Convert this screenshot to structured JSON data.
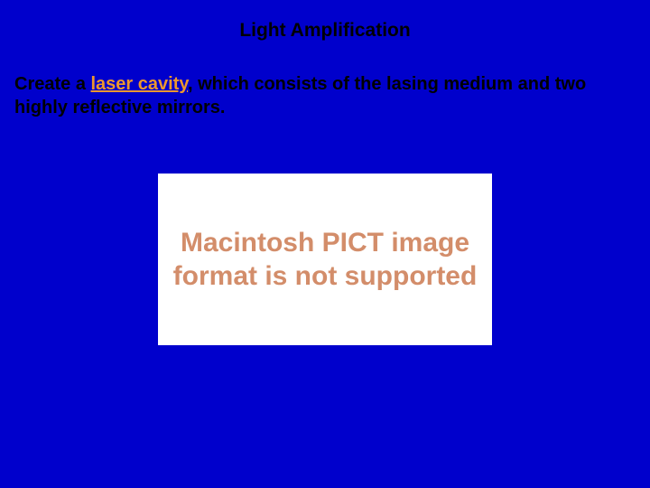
{
  "slide": {
    "background_color": "#0000cc",
    "title": {
      "text": "Light Amplification",
      "color": "#000000"
    },
    "body": {
      "prefix": "Create a ",
      "highlight_text": "laser cavity",
      "highlight_color": "#ec972f",
      "suffix": ", which consists of the lasing medium and two highly reflective mirrors."
    },
    "placeholder": {
      "text": "Macintosh PICT image format is not supported",
      "background_color": "#ffffff",
      "text_color": "#d38d6a"
    }
  }
}
